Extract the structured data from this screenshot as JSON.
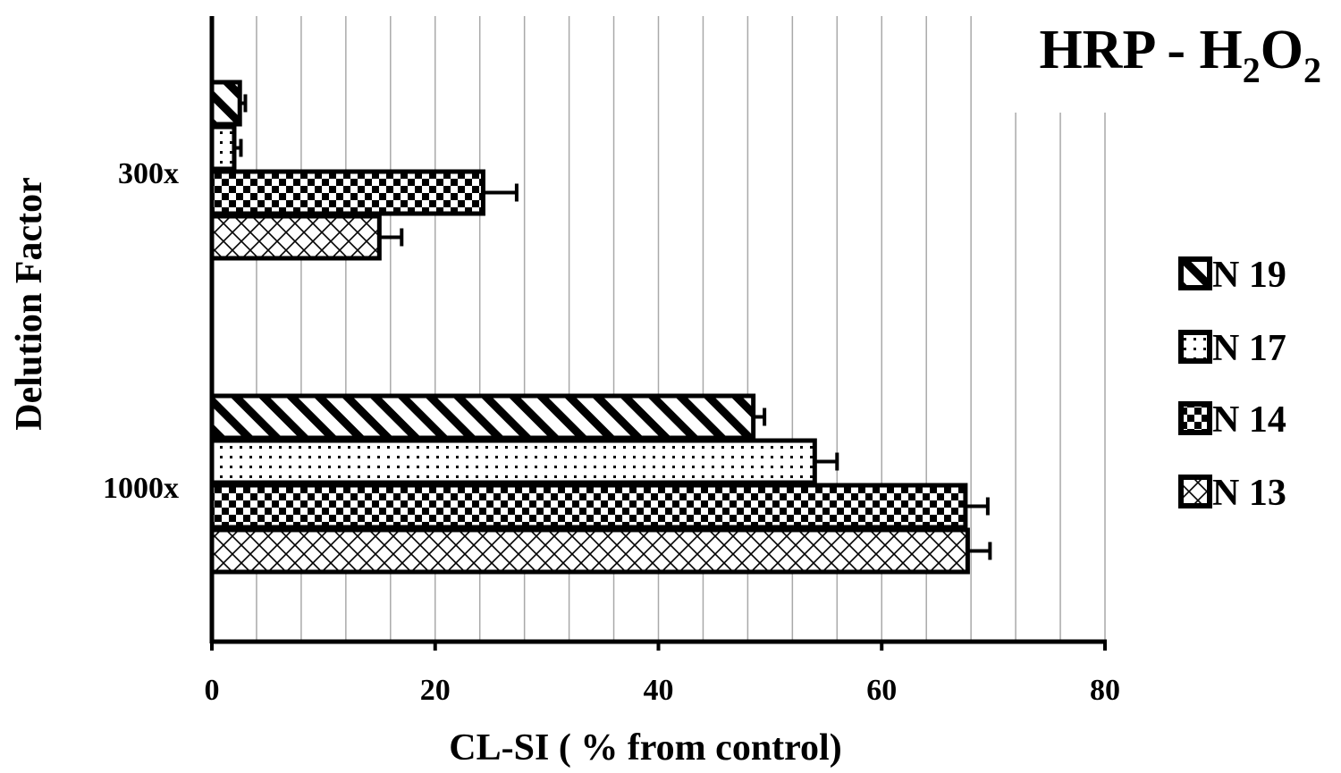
{
  "chart_data": {
    "type": "bar",
    "orientation": "horizontal",
    "title": {
      "main": "HRP - H",
      "sub1": "2",
      "mid": "O",
      "sub2": "2"
    },
    "xlabel": "CL-SI ( % from control)",
    "ylabel": "Delution Factor",
    "xlim": [
      0,
      80
    ],
    "xticks": [
      "0",
      "20",
      "40",
      "60",
      "80"
    ],
    "x_gridlines_every": 4,
    "categories": [
      "300x",
      "1000x"
    ],
    "series": [
      {
        "name": "N 19",
        "pattern": "diagonal-stripes",
        "values": [
          2.5,
          48.5
        ],
        "errors": [
          0.5,
          1.0
        ]
      },
      {
        "name": "N 17",
        "pattern": "dots",
        "values": [
          2.0,
          54.0
        ],
        "errors": [
          0.6,
          2.0
        ]
      },
      {
        "name": "N 14",
        "pattern": "checkerboard",
        "values": [
          24.3,
          67.5
        ],
        "errors": [
          3.0,
          2.0
        ]
      },
      {
        "name": "N 13",
        "pattern": "cross-hatch",
        "values": [
          15.0,
          67.7
        ],
        "errors": [
          2.0,
          2.0
        ]
      }
    ],
    "legend_order": [
      "N 19",
      "N 17",
      "N 14",
      "N 13"
    ],
    "legend_position": "right",
    "grid": true
  }
}
